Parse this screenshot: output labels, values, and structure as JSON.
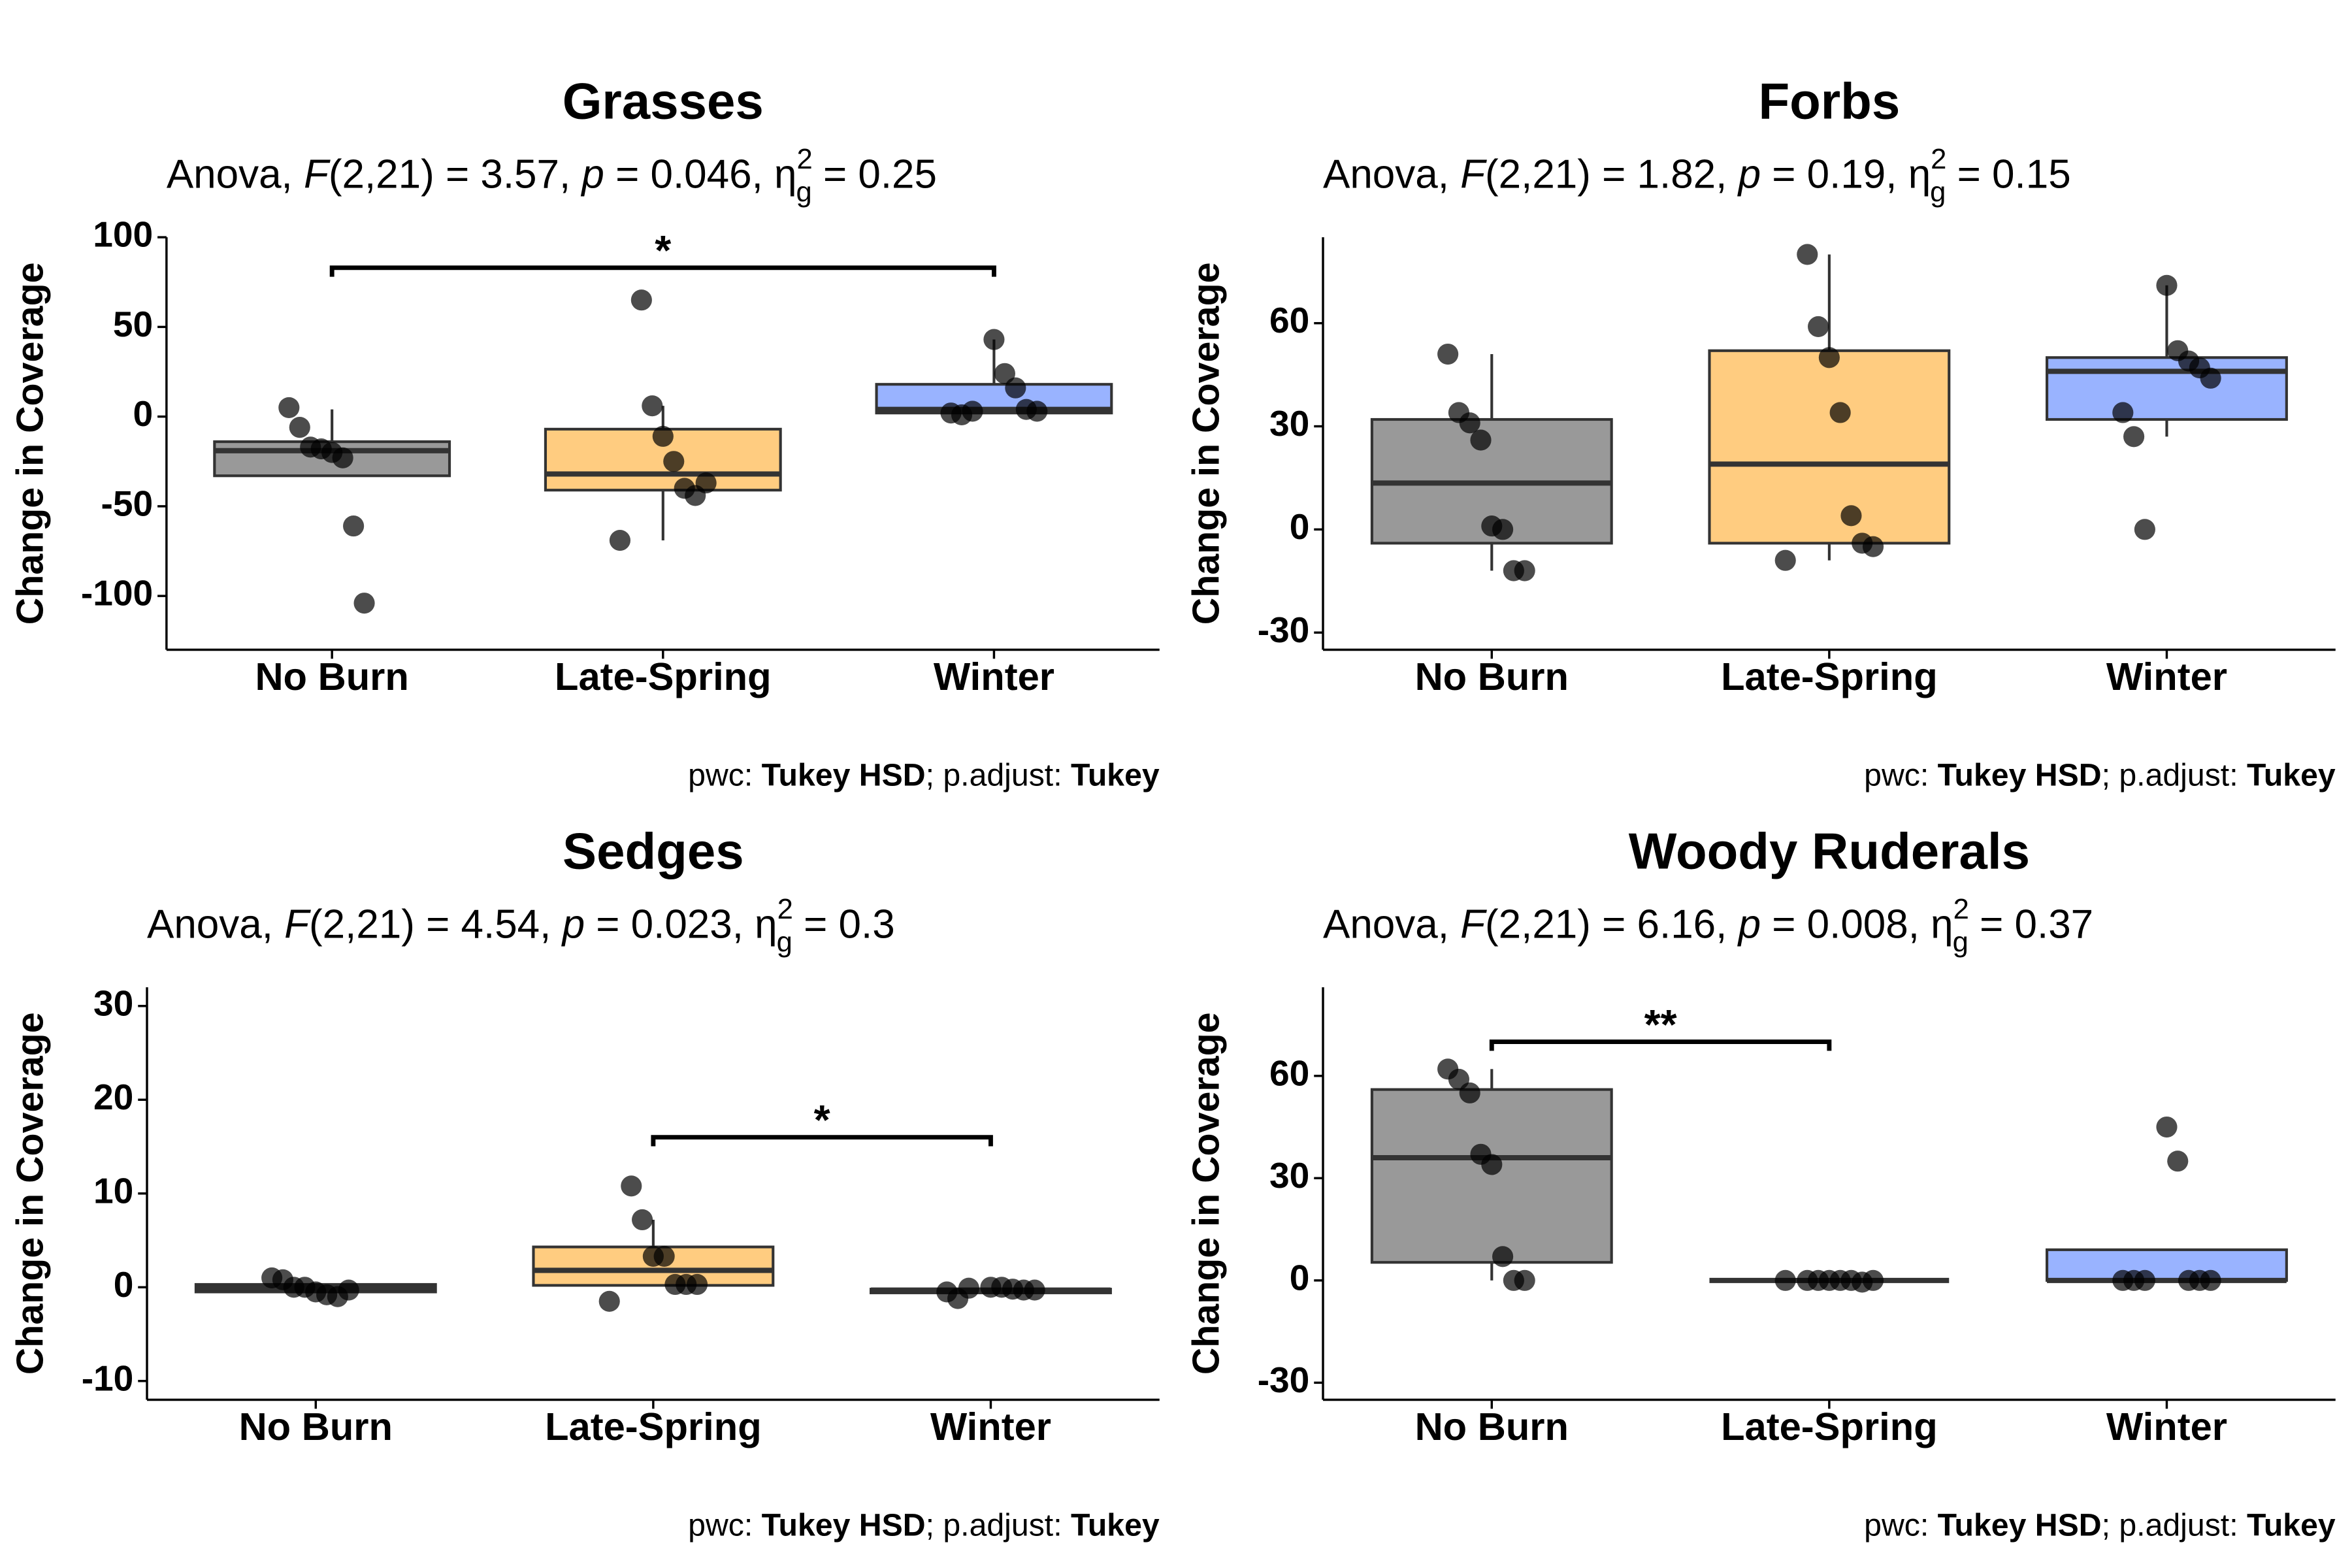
{
  "chart_data": [
    {
      "type": "box",
      "title": "Grasses",
      "subtitle": [
        {
          "text": "Anova, "
        },
        {
          "text": "F",
          "style": "italic"
        },
        {
          "text": "(2,21) = 3.57, "
        },
        {
          "text": "p",
          "style": "italic"
        },
        {
          "text": " = 0.046, η"
        },
        {
          "text": "2",
          "style": "sup"
        },
        {
          "text": "g",
          "style": "sub"
        },
        {
          "text": " = 0.25"
        }
      ],
      "caption": [
        {
          "text": "pwc: "
        },
        {
          "text": "Tukey HSD",
          "style": "bold"
        },
        {
          "text": "; p.adjust: "
        },
        {
          "text": "Tukey",
          "style": "bold"
        }
      ],
      "y_label": "Change in Coverage",
      "categories": [
        "No Burn",
        "Late-Spring",
        "Winter"
      ],
      "colors": [
        "#999999",
        "#ffcc80",
        "#99b3ff"
      ],
      "boxes": [
        {
          "whisker_low": -33,
          "q1": -33,
          "median": -19,
          "q3": -14,
          "whisker_high": 4,
          "points": [
            5,
            -6,
            -17,
            -18,
            -20,
            -23,
            -61,
            -104
          ]
        },
        {
          "whisker_low": -69,
          "q1": -41,
          "median": -32,
          "q3": -7,
          "whisker_high": 6,
          "points": [
            65,
            6,
            -11,
            -25,
            -40,
            -44,
            -37,
            -69
          ]
        },
        {
          "whisker_low": 2,
          "q1": 2,
          "median": 4,
          "q3": 18,
          "whisker_high": 43,
          "points": [
            43,
            24,
            16,
            4,
            3,
            2,
            1,
            3
          ]
        }
      ],
      "ylim": [
        -130,
        100
      ],
      "yticks": [
        -100,
        -50,
        0,
        50,
        100
      ],
      "brackets": [
        {
          "from": "No Burn",
          "to": "Winter",
          "y": 83,
          "label": "*"
        }
      ]
    },
    {
      "type": "box",
      "title": "Forbs",
      "subtitle": [
        {
          "text": "Anova, "
        },
        {
          "text": "F",
          "style": "italic"
        },
        {
          "text": "(2,21) = 1.82, "
        },
        {
          "text": "p",
          "style": "italic"
        },
        {
          "text": " = 0.19, η"
        },
        {
          "text": "2",
          "style": "sup"
        },
        {
          "text": "g",
          "style": "sub"
        },
        {
          "text": " = 0.15"
        }
      ],
      "caption": [
        {
          "text": "pwc: "
        },
        {
          "text": "Tukey HSD",
          "style": "bold"
        },
        {
          "text": "; p.adjust: "
        },
        {
          "text": "Tukey",
          "style": "bold"
        }
      ],
      "y_label": "Change in Coverage",
      "categories": [
        "No Burn",
        "Late-Spring",
        "Winter"
      ],
      "colors": [
        "#999999",
        "#ffcc80",
        "#99b3ff"
      ],
      "boxes": [
        {
          "whisker_low": -12,
          "q1": -4,
          "median": 13.5,
          "q3": 32,
          "whisker_high": 51,
          "points": [
            51,
            34,
            31,
            26,
            1,
            0,
            -12,
            -12
          ]
        },
        {
          "whisker_low": -9,
          "q1": -4,
          "median": 19,
          "q3": 52,
          "whisker_high": 80,
          "points": [
            80,
            59,
            50,
            34,
            4,
            -4,
            -5,
            -9
          ]
        },
        {
          "whisker_low": 27,
          "q1": 32,
          "median": 46,
          "q3": 50,
          "whisker_high": 71,
          "points": [
            71,
            52,
            49,
            47,
            44,
            34,
            27,
            0
          ]
        }
      ],
      "ylim": [
        -35,
        85
      ],
      "yticks": [
        -30,
        0,
        30,
        60
      ],
      "brackets": []
    },
    {
      "type": "box",
      "title": "Sedges",
      "subtitle": [
        {
          "text": "Anova, "
        },
        {
          "text": "F",
          "style": "italic"
        },
        {
          "text": "(2,21) = 4.54, "
        },
        {
          "text": "p",
          "style": "italic"
        },
        {
          "text": " = 0.023, η"
        },
        {
          "text": "2",
          "style": "sup"
        },
        {
          "text": "g",
          "style": "sub"
        },
        {
          "text": " = 0.3"
        }
      ],
      "caption": [
        {
          "text": "pwc: "
        },
        {
          "text": "Tukey HSD",
          "style": "bold"
        },
        {
          "text": "; p.adjust: "
        },
        {
          "text": "Tukey",
          "style": "bold"
        }
      ],
      "y_label": "Change in Coverage",
      "categories": [
        "No Burn",
        "Late-Spring",
        "Winter"
      ],
      "colors": [
        "#999999",
        "#ffcc80",
        "#99b3ff"
      ],
      "boxes": [
        {
          "whisker_low": -0.5,
          "q1": -0.5,
          "median": -0.1,
          "q3": 0.3,
          "whisker_high": 0.3,
          "points": [
            1,
            0.8,
            0,
            0,
            -0.5,
            -0.8,
            -1,
            -0.3
          ]
        },
        {
          "whisker_low": 0.2,
          "q1": 0.2,
          "median": 1.8,
          "q3": 4.3,
          "whisker_high": 7.2,
          "points": [
            10.8,
            7.2,
            3.3,
            3.3,
            0.3,
            0.3,
            0.3,
            -1.5
          ]
        },
        {
          "whisker_low": -0.6,
          "q1": -0.6,
          "median": -0.3,
          "q3": -0.2,
          "whisker_high": -0.2,
          "points": [
            0,
            0,
            -0.2,
            -0.3,
            -0.3,
            -0.5,
            -1.2,
            -0.1
          ]
        }
      ],
      "ylim": [
        -12,
        32
      ],
      "yticks": [
        -10,
        0,
        10,
        20,
        30
      ],
      "brackets": [
        {
          "from": "Late-Spring",
          "to": "Winter",
          "y": 16,
          "label": "*"
        }
      ]
    },
    {
      "type": "box",
      "title": "Woody Ruderals",
      "subtitle": [
        {
          "text": "Anova, "
        },
        {
          "text": "F",
          "style": "italic"
        },
        {
          "text": "(2,21) = 6.16, "
        },
        {
          "text": "p",
          "style": "italic"
        },
        {
          "text": " = 0.008, η"
        },
        {
          "text": "2",
          "style": "sup"
        },
        {
          "text": "g",
          "style": "sub"
        },
        {
          "text": " = 0.37"
        }
      ],
      "caption": [
        {
          "text": "pwc: "
        },
        {
          "text": "Tukey HSD",
          "style": "bold"
        },
        {
          "text": "; p.adjust: "
        },
        {
          "text": "Tukey",
          "style": "bold"
        }
      ],
      "y_label": "Change in Coverage",
      "categories": [
        "No Burn",
        "Late-Spring",
        "Winter"
      ],
      "colors": [
        "#999999",
        "#ffcc80",
        "#99b3ff"
      ],
      "boxes": [
        {
          "whisker_low": 0,
          "q1": 5.3,
          "median": 36,
          "q3": 56,
          "whisker_high": 62,
          "points": [
            62,
            59,
            55,
            37,
            34,
            7,
            0,
            0
          ]
        },
        {
          "whisker_low": 0,
          "q1": 0,
          "median": 0,
          "q3": 0,
          "whisker_high": 0,
          "points": [
            0,
            0,
            0,
            0,
            0,
            -0.5,
            0,
            0
          ]
        },
        {
          "whisker_low": 0,
          "q1": 0,
          "median": 0,
          "q3": 9,
          "whisker_high": 9,
          "points": [
            45,
            35,
            0,
            0,
            0,
            0,
            0,
            0
          ]
        }
      ],
      "ylim": [
        -35,
        86
      ],
      "yticks": [
        -30,
        0,
        30,
        60
      ],
      "brackets": [
        {
          "from": "No Burn",
          "to": "Late-Spring",
          "y": 70,
          "label": "**"
        }
      ]
    }
  ]
}
